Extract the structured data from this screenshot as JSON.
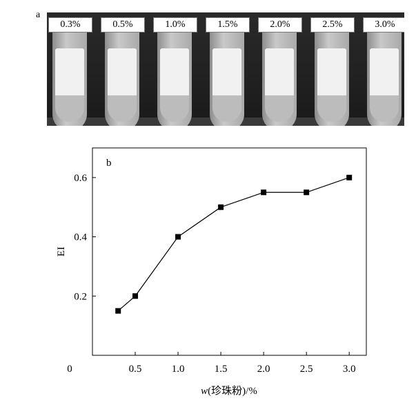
{
  "panel_a_letter": "a",
  "panel_b_letter": "b",
  "tube_labels": [
    "0.3%",
    "0.5%",
    "1.0%",
    "1.5%",
    "2.0%",
    "2.5%",
    "3.0%"
  ],
  "chart_data": {
    "type": "line",
    "xlabel_italic": "w",
    "xlabel_rest": "(珍珠粉)/%",
    "ylabel": "EI",
    "xlim": [
      0,
      3.2
    ],
    "ylim": [
      0,
      0.7
    ],
    "x_ticks": [
      "0",
      "0.5",
      "1.0",
      "1.5",
      "2.0",
      "2.5",
      "3.0"
    ],
    "x_tick_values": [
      0,
      0.5,
      1.0,
      1.5,
      2.0,
      2.5,
      3.0
    ],
    "y_ticks": [
      "0.2",
      "0.4",
      "0.6"
    ],
    "y_tick_values": [
      0.2,
      0.4,
      0.6
    ],
    "marker": "square",
    "series": [
      {
        "x": [
          0.3,
          0.5,
          1.0,
          1.5,
          2.0,
          2.5,
          3.0
        ],
        "values": [
          0.15,
          0.2,
          0.4,
          0.5,
          0.55,
          0.55,
          0.6
        ]
      }
    ]
  }
}
